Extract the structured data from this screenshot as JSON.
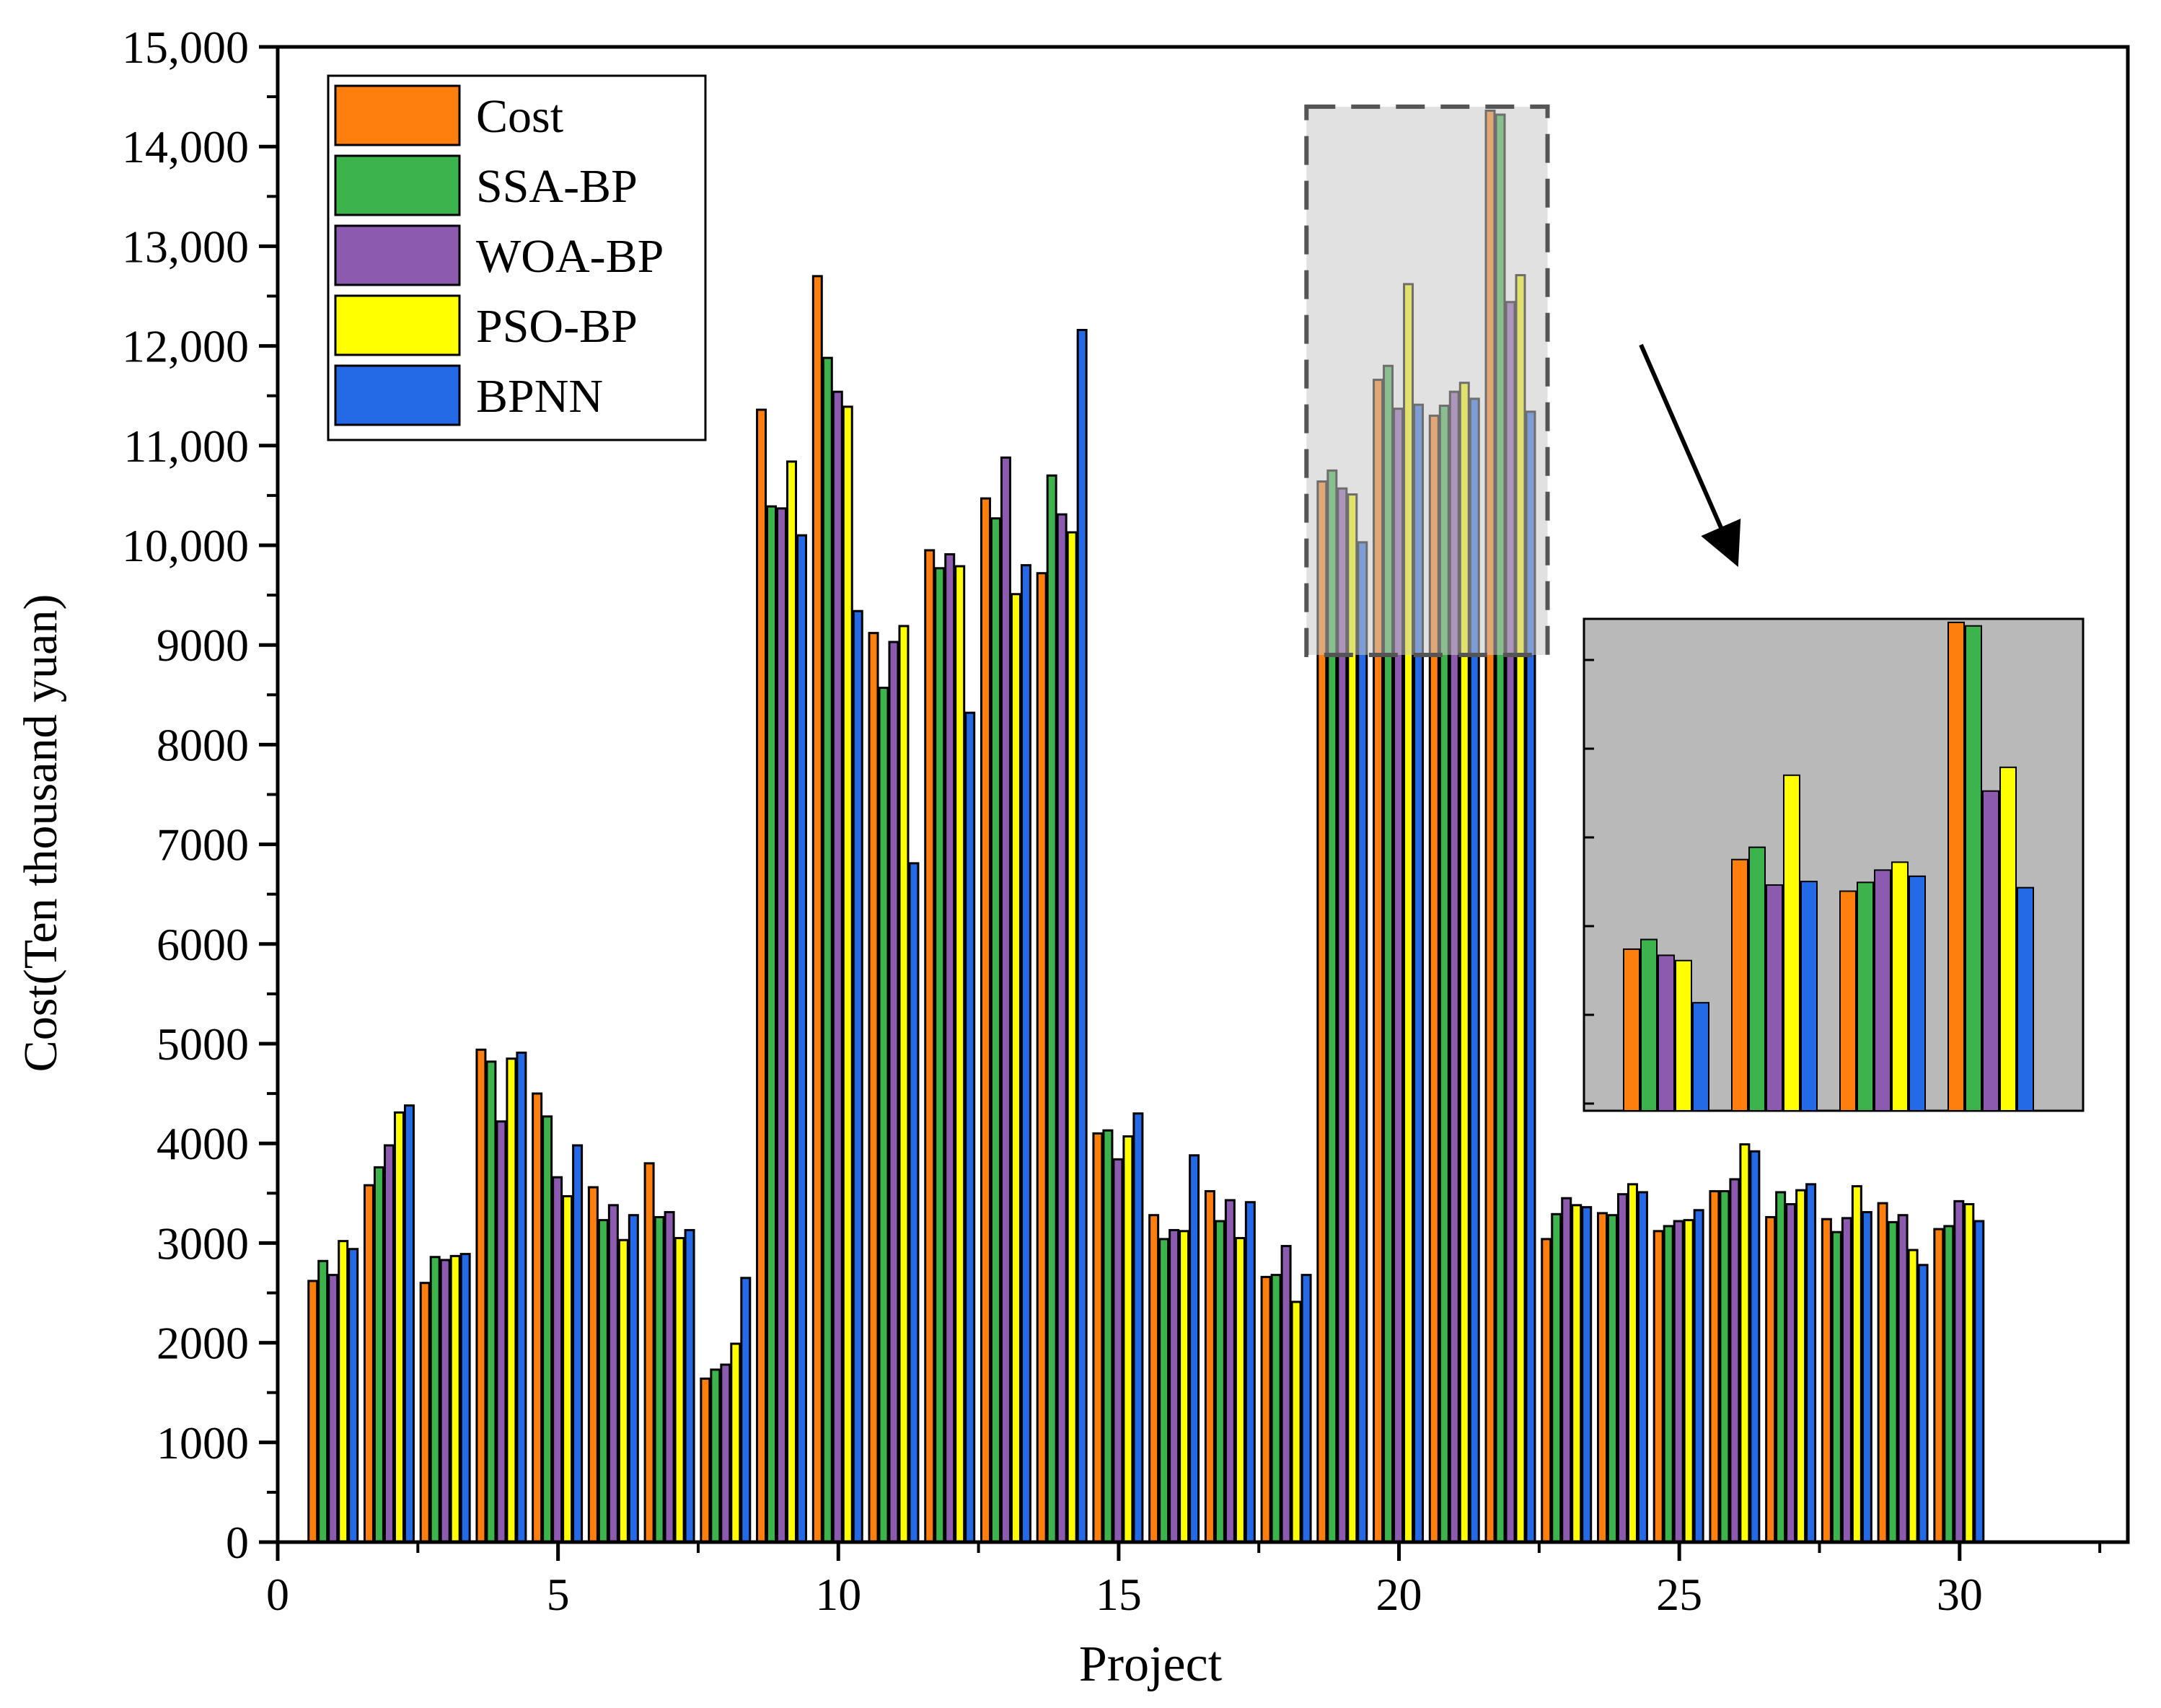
{
  "chart_data": {
    "type": "bar",
    "title": "",
    "xlabel": "Project",
    "ylabel": "Cost(Ten thousand yuan)",
    "xlim": [
      0,
      33
    ],
    "ylim": [
      0,
      15000
    ],
    "xticks": [
      0,
      5,
      10,
      15,
      20,
      25,
      30
    ],
    "xtick_labels": [
      "0",
      "5",
      "10",
      "15",
      "20",
      "25",
      "30"
    ],
    "yticks": [
      0,
      1000,
      2000,
      3000,
      4000,
      5000,
      6000,
      7000,
      8000,
      9000,
      10000,
      11000,
      12000,
      13000,
      14000,
      15000
    ],
    "ytick_labels": [
      "0",
      "1000",
      "2000",
      "3000",
      "4000",
      "5000",
      "6000",
      "7000",
      "8000",
      "9000",
      "10,000",
      "11,000",
      "12,000",
      "13,000",
      "14,000",
      "15,000"
    ],
    "legend_position": "top-left",
    "categories": [
      1,
      2,
      3,
      4,
      5,
      6,
      7,
      8,
      9,
      10,
      11,
      12,
      13,
      14,
      15,
      16,
      17,
      18,
      19,
      20,
      21,
      22,
      23,
      24,
      25,
      26,
      27,
      28,
      29,
      30
    ],
    "series": [
      {
        "name": "Cost",
        "color": "#FF7F0E",
        "values": [
          2620,
          3580,
          2600,
          4940,
          4500,
          3560,
          3800,
          1640,
          11360,
          12700,
          9120,
          9950,
          10470,
          9720,
          4100,
          3280,
          3520,
          2660,
          10640,
          11660,
          11300,
          14360,
          3040,
          3300,
          3120,
          3520,
          3260,
          3240,
          3400,
          3140
        ]
      },
      {
        "name": "SSA-BP",
        "color": "#3CB44B",
        "values": [
          2820,
          3760,
          2860,
          4820,
          4270,
          3230,
          3260,
          1730,
          10390,
          11880,
          8570,
          9770,
          10270,
          10700,
          4130,
          3040,
          3220,
          2680,
          10750,
          11800,
          11400,
          14320,
          3290,
          3280,
          3170,
          3520,
          3510,
          3110,
          3210,
          3170
        ]
      },
      {
        "name": "WOA-BP",
        "color": "#8C5AAE",
        "values": [
          2680,
          3980,
          2830,
          4220,
          3660,
          3380,
          3310,
          1780,
          10370,
          11540,
          9030,
          9910,
          10880,
          10310,
          3840,
          3130,
          3430,
          2970,
          10570,
          11370,
          11540,
          12440,
          3450,
          3490,
          3220,
          3640,
          3390,
          3250,
          3280,
          3420
        ]
      },
      {
        "name": "PSO-BP",
        "color": "#FFFF00",
        "values": [
          3020,
          4310,
          2870,
          4850,
          3470,
          3030,
          3050,
          1990,
          10840,
          11390,
          9190,
          9790,
          9510,
          10130,
          4070,
          3120,
          3050,
          2410,
          10510,
          12620,
          11630,
          12710,
          3380,
          3590,
          3230,
          3990,
          3530,
          3570,
          2930,
          3390
        ]
      },
      {
        "name": "BPNN",
        "color": "#2469E5",
        "values": [
          2940,
          4380,
          2890,
          4910,
          3980,
          3280,
          3130,
          2650,
          10100,
          9340,
          6810,
          8320,
          9800,
          12160,
          4300,
          3880,
          3410,
          2680,
          10030,
          11410,
          11470,
          11340,
          3360,
          3510,
          3330,
          3920,
          3590,
          3310,
          2780,
          3220
        ]
      }
    ],
    "inset": {
      "source_projects": [
        19,
        20,
        21,
        22
      ],
      "source_yrange": [
        8900,
        14400
      ],
      "arrow": "from zoom box to inset"
    }
  }
}
